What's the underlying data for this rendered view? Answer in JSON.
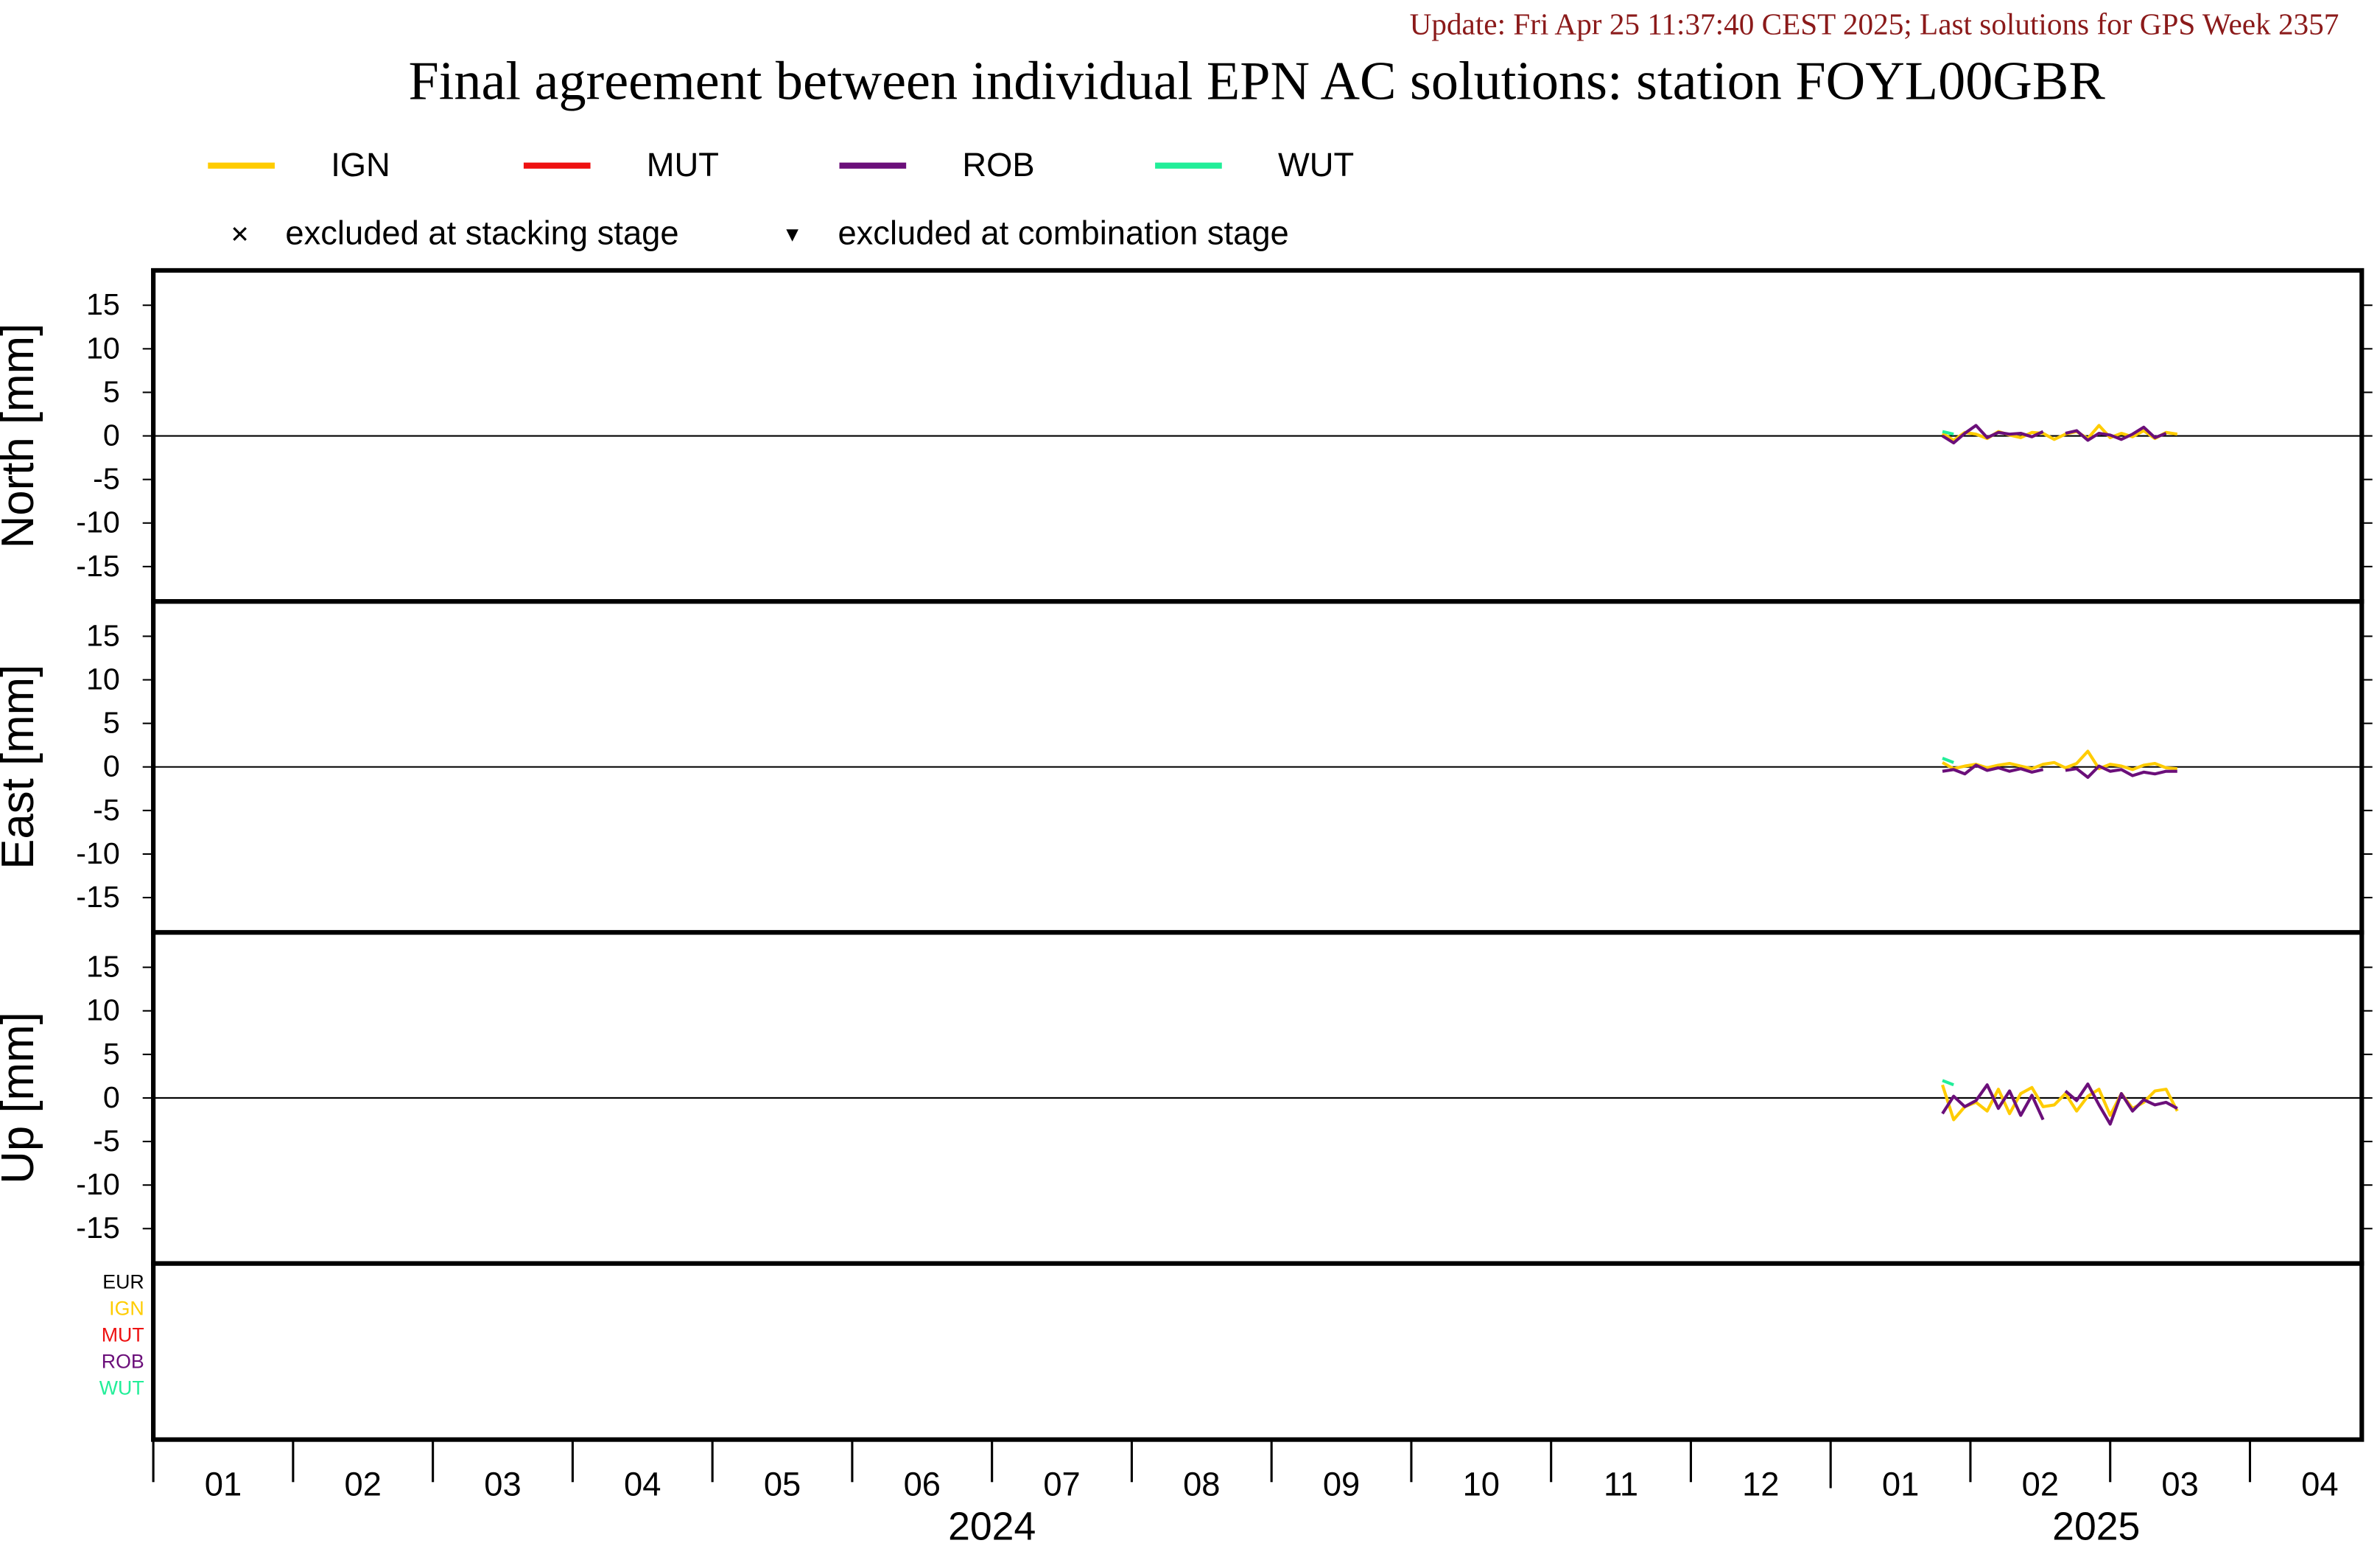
{
  "chart_data": {
    "type": "line",
    "update": "Update: Fri Apr 25 11:37:40 CEST 2025; Last solutions for GPS Week 2357",
    "title": "Final agreement between individual EPN AC solutions: station FOYL00GBR",
    "marker_legend": [
      "excluded at stacking stage",
      "excluded at combination stage"
    ],
    "xlim": [
      0,
      15.8
    ],
    "xticks": [
      {
        "value": 0.5,
        "label": "01"
      },
      {
        "value": 1.5,
        "label": "02"
      },
      {
        "value": 2.5,
        "label": "03"
      },
      {
        "value": 3.5,
        "label": "04"
      },
      {
        "value": 4.5,
        "label": "05"
      },
      {
        "value": 5.5,
        "label": "06"
      },
      {
        "value": 6.5,
        "label": "07"
      },
      {
        "value": 7.5,
        "label": "08"
      },
      {
        "value": 8.5,
        "label": "09"
      },
      {
        "value": 9.5,
        "label": "10"
      },
      {
        "value": 10.5,
        "label": "11"
      },
      {
        "value": 11.5,
        "label": "12"
      },
      {
        "value": 12.5,
        "label": "01"
      },
      {
        "value": 13.5,
        "label": "02"
      },
      {
        "value": 14.5,
        "label": "03"
      },
      {
        "value": 15.5,
        "label": "04"
      }
    ],
    "year_labels": [
      {
        "value": 6,
        "label": "2024"
      },
      {
        "value": 13.9,
        "label": "2025"
      }
    ],
    "legend": [
      {
        "name": "IGN",
        "color": "#ffcc00"
      },
      {
        "name": "MUT",
        "color": "#ee1111"
      },
      {
        "name": "ROB",
        "color": "#6b0f7a"
      },
      {
        "name": "WUT",
        "color": "#22ee99"
      }
    ],
    "ac_list": [
      {
        "name": "EUR",
        "color": "#000000"
      },
      {
        "name": "IGN",
        "color": "#ffcc00"
      },
      {
        "name": "MUT",
        "color": "#ee1111"
      },
      {
        "name": "ROB",
        "color": "#6b0f7a"
      },
      {
        "name": "WUT",
        "color": "#22ee99"
      }
    ],
    "x": [
      12.8,
      12.88,
      12.96,
      13.04,
      13.12,
      13.2,
      13.28,
      13.36,
      13.44,
      13.52,
      13.6,
      13.68,
      13.76,
      13.84,
      13.92,
      14.0,
      14.08,
      14.16,
      14.24,
      14.32,
      14.4,
      14.48
    ],
    "panels": [
      {
        "ylabel": "North [mm]",
        "ylim": [
          -19,
          19
        ],
        "yticks": [
          15,
          10,
          5,
          0,
          -5,
          -10,
          -15
        ],
        "series": [
          {
            "name": "IGN",
            "color": "#ffcc00",
            "values": [
              0.3,
              -0.5,
              0.4,
              0.2,
              -0.3,
              0.5,
              0.1,
              -0.2,
              0.4,
              0.3,
              -0.4,
              0.2,
              0.5,
              -0.3,
              1.2,
              -0.2,
              0.3,
              -0.1,
              0.6,
              -0.3,
              0.4,
              0.2
            ]
          },
          {
            "name": "MUT",
            "color": "#ee1111",
            "values": [
              null,
              null,
              null,
              null,
              null,
              null,
              null,
              null,
              null,
              null,
              null,
              null,
              null,
              null,
              null,
              null,
              null,
              null,
              null,
              null,
              null,
              null
            ]
          },
          {
            "name": "ROB",
            "color": "#6b0f7a",
            "values": [
              0,
              -0.8,
              0.3,
              1.2,
              -0.2,
              0.4,
              0.2,
              0.3,
              -0.1,
              0.5,
              null,
              0.3,
              0.6,
              -0.5,
              0.3,
              0.1,
              -0.4,
              0.2,
              1.0,
              -0.2,
              0.3,
              null
            ]
          },
          {
            "name": "WUT",
            "color": "#22ee99",
            "values": [
              0.5,
              0.2,
              null,
              null,
              null,
              null,
              null,
              null,
              null,
              null,
              null,
              null,
              null,
              null,
              null,
              null,
              null,
              null,
              null,
              null,
              null,
              null
            ]
          }
        ]
      },
      {
        "ylabel": "East [mm]",
        "ylim": [
          -19,
          19
        ],
        "yticks": [
          15,
          10,
          5,
          0,
          -5,
          -10,
          -15
        ],
        "series": [
          {
            "name": "IGN",
            "color": "#ffcc00",
            "values": [
              0.5,
              -0.2,
              0.1,
              0.3,
              -0.1,
              0.2,
              0.4,
              0.1,
              -0.2,
              0.3,
              0.5,
              -0.1,
              0.4,
              1.8,
              -0.2,
              0.3,
              0.1,
              -0.3,
              0.2,
              0.4,
              -0.1,
              -0.2
            ]
          },
          {
            "name": "MUT",
            "color": "#ee1111",
            "values": [
              null,
              null,
              null,
              null,
              null,
              null,
              null,
              null,
              null,
              null,
              null,
              null,
              null,
              null,
              null,
              null,
              null,
              null,
              null,
              null,
              null,
              null
            ]
          },
          {
            "name": "ROB",
            "color": "#6b0f7a",
            "values": [
              -0.5,
              -0.3,
              -0.8,
              0.2,
              -0.4,
              -0.1,
              -0.5,
              -0.2,
              -0.6,
              -0.3,
              null,
              -0.4,
              -0.2,
              -1.2,
              0.1,
              -0.5,
              -0.3,
              -1.0,
              -0.6,
              -0.8,
              -0.5,
              -0.5
            ]
          },
          {
            "name": "WUT",
            "color": "#22ee99",
            "values": [
              1.0,
              0.5,
              null,
              null,
              null,
              null,
              null,
              null,
              null,
              null,
              null,
              null,
              null,
              null,
              null,
              null,
              null,
              null,
              null,
              null,
              null,
              null
            ]
          }
        ]
      },
      {
        "ylabel": "Up [mm]",
        "ylim": [
          -19,
          19
        ],
        "yticks": [
          15,
          10,
          5,
          0,
          -5,
          -10,
          -15
        ],
        "series": [
          {
            "name": "IGN",
            "color": "#ffcc00",
            "values": [
              1.5,
              -2.5,
              -1.0,
              -0.5,
              -1.5,
              1.0,
              -1.8,
              0.5,
              1.2,
              -1.0,
              -0.8,
              0.5,
              -1.5,
              0.2,
              1.0,
              -2.0,
              0.5,
              -1.2,
              -0.5,
              0.8,
              1.0,
              -1.5
            ]
          },
          {
            "name": "MUT",
            "color": "#ee1111",
            "values": [
              null,
              null,
              null,
              null,
              null,
              null,
              null,
              null,
              null,
              null,
              null,
              null,
              null,
              null,
              null,
              null,
              null,
              null,
              null,
              null,
              null,
              null
            ]
          },
          {
            "name": "ROB",
            "color": "#6b0f7a",
            "values": [
              -1.8,
              0.2,
              -1.0,
              -0.3,
              1.5,
              -1.2,
              0.8,
              -2.0,
              0.3,
              -2.5,
              null,
              0.8,
              -0.3,
              1.6,
              -0.8,
              -3.0,
              0.5,
              -1.5,
              -0.2,
              -0.8,
              -0.5,
              -1.2
            ]
          },
          {
            "name": "WUT",
            "color": "#22ee99",
            "values": [
              2.0,
              1.5,
              null,
              null,
              null,
              null,
              null,
              null,
              null,
              null,
              null,
              null,
              null,
              null,
              null,
              null,
              null,
              null,
              null,
              null,
              null,
              null
            ]
          }
        ]
      }
    ]
  }
}
